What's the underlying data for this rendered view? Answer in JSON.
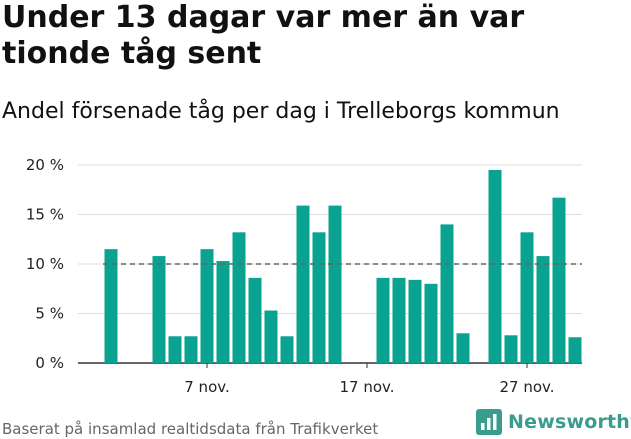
{
  "header": {
    "title": "Under 13 dagar var mer än var tionde tåg sent",
    "subtitle": "Andel försenade tåg per dag i Trelleborgs kommun"
  },
  "footer": {
    "source": "Baserat på insamlad realtidsdata från Trafikverket"
  },
  "brand": {
    "name": "Newsworthy",
    "logo_icon": "newsworthy-chart-logo-icon",
    "color": "#3a9c8c"
  },
  "colors": {
    "bar": "#0aa392",
    "grid": "#dddddd",
    "reference_line": "#666666"
  },
  "chart_data": {
    "type": "bar",
    "categories": [
      "1",
      "2",
      "3",
      "4",
      "5",
      "6",
      "7",
      "8",
      "9",
      "10",
      "11",
      "12",
      "13",
      "14",
      "15",
      "16",
      "17",
      "18",
      "19",
      "20",
      "21",
      "22",
      "23",
      "24",
      "25",
      "26",
      "27",
      "28",
      "29",
      "30"
    ],
    "values": [
      11.5,
      null,
      null,
      10.8,
      2.7,
      2.7,
      11.5,
      10.3,
      13.2,
      8.6,
      5.3,
      2.7,
      15.9,
      13.2,
      15.9,
      null,
      null,
      8.6,
      8.6,
      8.4,
      8.0,
      14.0,
      3.0,
      null,
      19.5,
      2.8,
      13.2,
      10.8,
      16.7,
      2.6
    ],
    "x_tick_labels": [
      {
        "category": "7",
        "label": "7 nov."
      },
      {
        "category": "17",
        "label": "17 nov."
      },
      {
        "category": "27",
        "label": "27 nov."
      }
    ],
    "y_ticks": [
      0,
      5,
      10,
      15,
      20
    ],
    "y_tick_labels": [
      "0 %",
      "5 %",
      "10 %",
      "15 %",
      "20 %"
    ],
    "ylim": [
      0,
      20
    ],
    "reference_line": 10,
    "grid": true,
    "xlabel": "",
    "ylabel": ""
  }
}
